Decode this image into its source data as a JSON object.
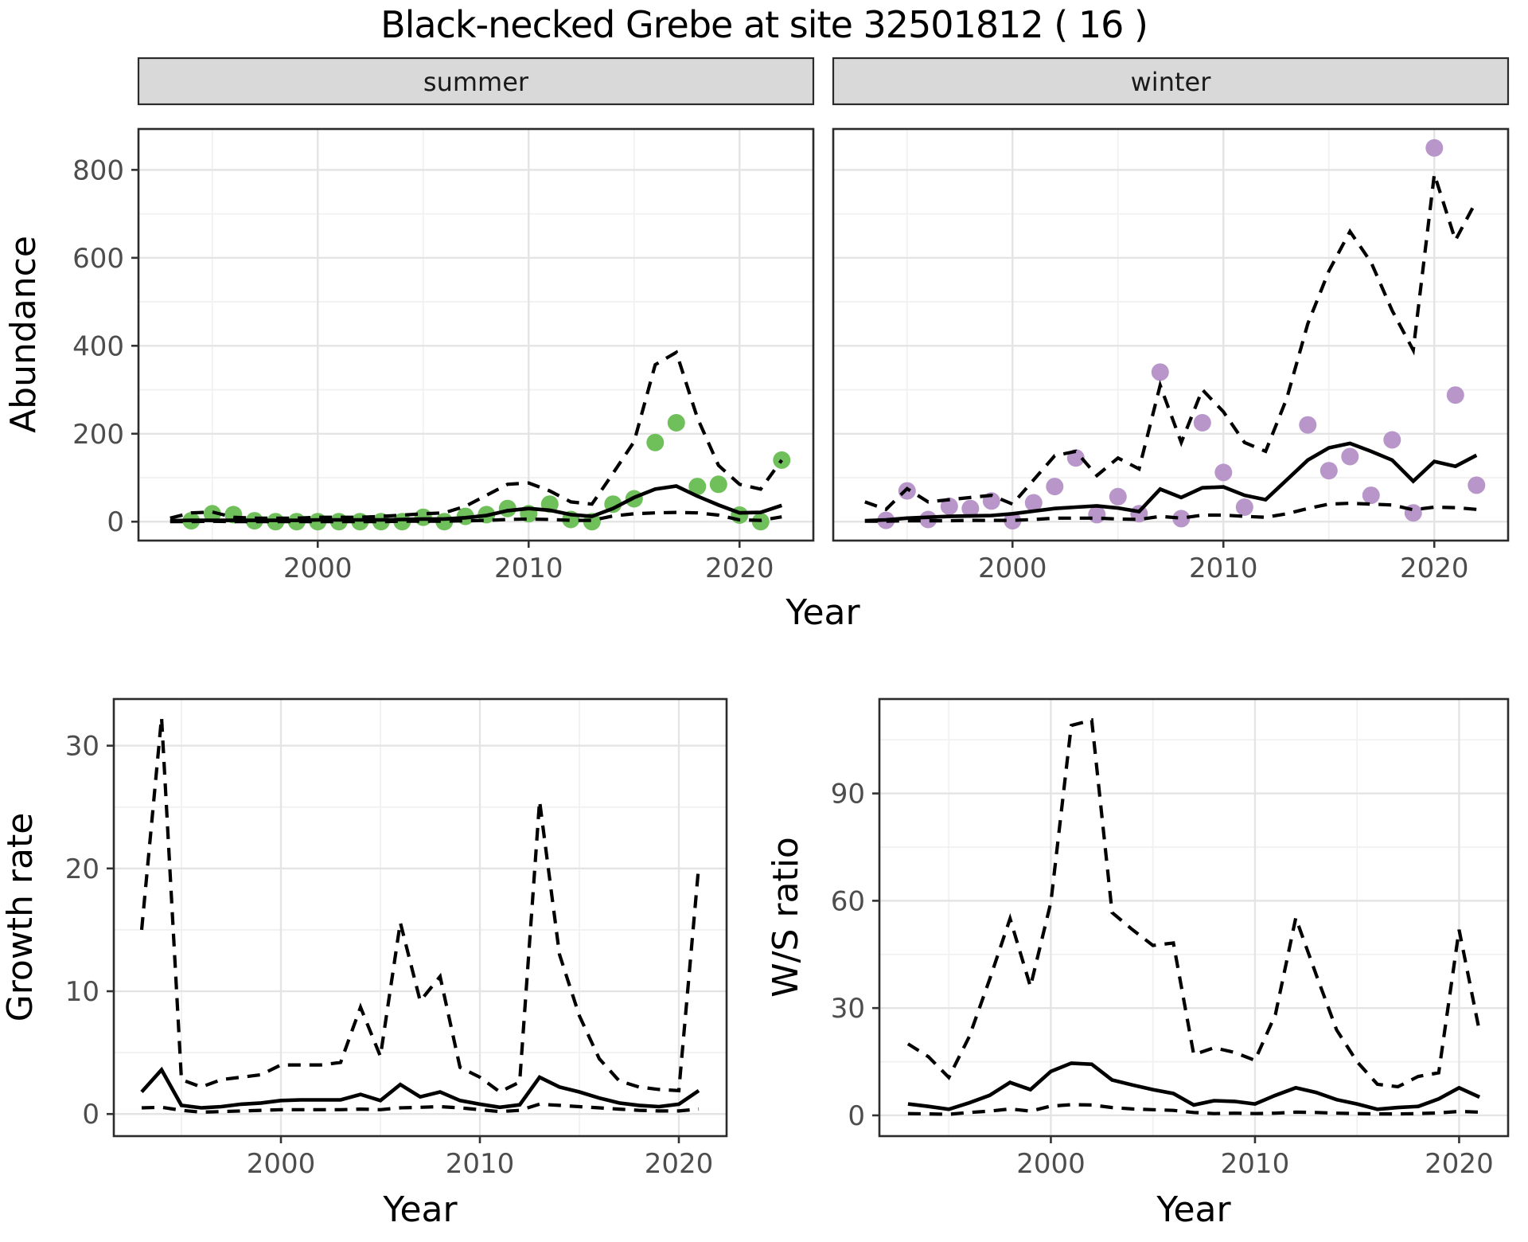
{
  "title": "Black-necked Grebe at site 32501812 ( 16 )",
  "colors": {
    "point_summer": "#6fbf5a",
    "point_winter": "#b896ca",
    "line": "#000000",
    "grid_major": "#e4e4e4",
    "grid_minor": "#f1f1f1",
    "strip_bg": "#d9d9d9",
    "panel_border": "#2b2b2b",
    "tick_text": "#4d4d4d"
  },
  "axes": {
    "x_label_top": "Year",
    "x_label_growth": "Year",
    "x_label_ws": "Year",
    "y_label_abundance": "Abundance",
    "y_label_growth": "Growth rate",
    "y_label_ws": "W/S ratio"
  },
  "chart_data": [
    {
      "id": "abundance-summer",
      "type": "line+scatter",
      "facet_label": "summer",
      "xlabel": "Year",
      "ylabel": "Abundance",
      "xlim": [
        1991.5,
        2023.5
      ],
      "ylim": [
        -43,
        893
      ],
      "xticks": [
        2000,
        2010,
        2020
      ],
      "xminor": [
        1995,
        2005,
        2015
      ],
      "yticks": [
        0,
        200,
        400,
        600,
        800
      ],
      "yminor": [
        100,
        300,
        500,
        700
      ],
      "points": {
        "name": "observed-count",
        "years": [
          1994,
          1995,
          1996,
          1997,
          1998,
          1999,
          2000,
          2001,
          2002,
          2003,
          2004,
          2005,
          2006,
          2007,
          2008,
          2009,
          2010,
          2011,
          2012,
          2013,
          2014,
          2015,
          2016,
          2017,
          2018,
          2019,
          2020,
          2021,
          2022
        ],
        "values": [
          2,
          18,
          16,
          2,
          0,
          0,
          0,
          0,
          0,
          0,
          0,
          10,
          0,
          12,
          16,
          30,
          18,
          40,
          5,
          0,
          40,
          52,
          180,
          225,
          80,
          85,
          15,
          0,
          140
        ]
      },
      "series": [
        {
          "name": "model-estimate",
          "style": "solid",
          "x0": 1993,
          "values": [
            2,
            3,
            3,
            3,
            3,
            3,
            3,
            4,
            4,
            4,
            4,
            5,
            6,
            6,
            9,
            14,
            25,
            30,
            26,
            16,
            12,
            30,
            55,
            74,
            81,
            58,
            38,
            20,
            21,
            37
          ]
        },
        {
          "name": "upper-ci",
          "style": "dashed",
          "x0": 1993,
          "values": [
            8,
            20,
            22,
            10,
            8,
            8,
            8,
            10,
            10,
            10,
            12,
            15,
            18,
            20,
            35,
            60,
            85,
            88,
            70,
            45,
            40,
            110,
            182,
            357,
            385,
            236,
            128,
            85,
            74,
            140
          ]
        },
        {
          "name": "lower-ci",
          "style": "dashed",
          "x0": 1993,
          "values": [
            0,
            0,
            1,
            0,
            0,
            0,
            0,
            0,
            0,
            0,
            0,
            1,
            1,
            1,
            2,
            3,
            5,
            6,
            5,
            3,
            3,
            13,
            18,
            20,
            21,
            20,
            15,
            4,
            3,
            11
          ]
        }
      ]
    },
    {
      "id": "abundance-winter",
      "type": "line+scatter",
      "facet_label": "winter",
      "xlabel": "Year",
      "ylabel": "Abundance",
      "xlim": [
        1991.5,
        2023.5
      ],
      "ylim": [
        -43,
        893
      ],
      "xticks": [
        2000,
        2010,
        2020
      ],
      "xminor": [
        1995,
        2005,
        2015
      ],
      "yticks": [
        0,
        200,
        400,
        600,
        800
      ],
      "yminor": [
        100,
        300,
        500,
        700
      ],
      "points": {
        "name": "observed-count",
        "years": [
          1994,
          1995,
          1996,
          1997,
          1998,
          1999,
          2000,
          2001,
          2002,
          2003,
          2004,
          2005,
          2006,
          2007,
          2008,
          2009,
          2010,
          2011,
          2014,
          2015,
          2016,
          2017,
          2018,
          2019,
          2020,
          2021,
          2022
        ],
        "values": [
          3,
          70,
          5,
          35,
          30,
          47,
          2,
          43,
          80,
          145,
          16,
          57,
          18,
          340,
          7,
          225,
          112,
          33,
          220,
          116,
          148,
          60,
          186,
          20,
          850,
          288,
          83
        ]
      },
      "series": [
        {
          "name": "model-estimate",
          "style": "solid",
          "x0": 1993,
          "values": [
            2,
            4,
            8,
            10,
            12,
            13,
            14,
            18,
            24,
            30,
            33,
            36,
            31,
            23,
            74,
            55,
            77,
            79,
            60,
            50,
            95,
            140,
            168,
            178,
            160,
            140,
            92,
            137,
            126,
            151
          ]
        },
        {
          "name": "upper-ci",
          "style": "dashed",
          "x0": 1993,
          "values": [
            45,
            28,
            75,
            45,
            50,
            55,
            60,
            40,
            95,
            150,
            160,
            105,
            145,
            120,
            310,
            180,
            300,
            250,
            180,
            160,
            280,
            450,
            570,
            660,
            590,
            480,
            390,
            790,
            640,
            730
          ]
        },
        {
          "name": "lower-ci",
          "style": "dashed",
          "x0": 1993,
          "values": [
            1,
            1,
            2,
            2,
            2,
            3,
            3,
            3,
            5,
            8,
            8,
            8,
            6,
            5,
            12,
            8,
            15,
            15,
            12,
            10,
            18,
            30,
            40,
            42,
            40,
            38,
            27,
            33,
            32,
            28
          ]
        }
      ]
    },
    {
      "id": "growth-rate",
      "type": "line",
      "facet_label": null,
      "xlabel": "Year",
      "ylabel": "Growth rate",
      "xlim": [
        1991.6,
        2022.4
      ],
      "ylim": [
        -1.8,
        33.8
      ],
      "xticks": [
        2000,
        2010,
        2020
      ],
      "xminor": [
        1995,
        2005,
        2015
      ],
      "yticks": [
        0,
        10,
        20,
        30
      ],
      "yminor": [
        5,
        15,
        25
      ],
      "points": null,
      "series": [
        {
          "name": "model-estimate",
          "style": "solid",
          "x0": 1993,
          "values": [
            1.8,
            3.6,
            0.7,
            0.5,
            0.6,
            0.8,
            0.9,
            1.1,
            1.15,
            1.15,
            1.15,
            1.6,
            1.1,
            2.4,
            1.4,
            1.8,
            1.1,
            0.8,
            0.55,
            0.75,
            3.0,
            2.2,
            1.8,
            1.3,
            0.9,
            0.7,
            0.6,
            0.8,
            1.9
          ]
        },
        {
          "name": "upper-ci",
          "style": "dashed",
          "x0": 1993,
          "values": [
            15,
            32.3,
            2.8,
            2.2,
            2.8,
            3.0,
            3.2,
            4.0,
            4.0,
            4.0,
            4.2,
            8.7,
            4.7,
            15.6,
            9.2,
            11.2,
            3.8,
            3.0,
            1.8,
            2.6,
            25.5,
            13.0,
            8.0,
            4.5,
            2.7,
            2.2,
            2.0,
            1.9,
            20.2
          ]
        },
        {
          "name": "lower-ci",
          "style": "dashed",
          "x0": 1993,
          "values": [
            0.5,
            0.55,
            0.3,
            0.15,
            0.2,
            0.25,
            0.3,
            0.35,
            0.35,
            0.35,
            0.35,
            0.4,
            0.35,
            0.5,
            0.55,
            0.6,
            0.5,
            0.35,
            0.2,
            0.3,
            0.8,
            0.7,
            0.6,
            0.5,
            0.4,
            0.3,
            0.25,
            0.25,
            0.4
          ]
        }
      ]
    },
    {
      "id": "ws-ratio",
      "type": "line",
      "facet_label": null,
      "xlabel": "Year",
      "ylabel": "W/S ratio",
      "xlim": [
        1991.6,
        2022.4
      ],
      "ylim": [
        -5.8,
        116.4
      ],
      "xticks": [
        2000,
        2010,
        2020
      ],
      "xminor": [
        1995,
        2005,
        2015
      ],
      "yticks": [
        0,
        30,
        60,
        90
      ],
      "yminor": [
        15,
        45,
        75,
        105
      ],
      "points": null,
      "series": [
        {
          "name": "model-estimate",
          "style": "solid",
          "x0": 1993,
          "values": [
            3.2,
            2.5,
            1.7,
            3.5,
            5.6,
            9.2,
            7.2,
            12.3,
            14.6,
            14.3,
            9.9,
            8.5,
            7.2,
            6.1,
            2.9,
            4.1,
            3.9,
            3.2,
            5.6,
            7.7,
            6.4,
            4.4,
            3.2,
            1.7,
            2.2,
            2.5,
            4.6,
            7.7,
            5.1
          ]
        },
        {
          "name": "upper-ci",
          "style": "dashed",
          "x0": 1993,
          "values": [
            20,
            16.4,
            10.6,
            22,
            38,
            55,
            36,
            59.6,
            109,
            110.5,
            56.7,
            51.9,
            47.5,
            48.2,
            17.0,
            18.9,
            17.6,
            15.4,
            28.2,
            55.2,
            39.3,
            23.9,
            15.0,
            8.7,
            8.0,
            10.9,
            11.9,
            51.9,
            23.4
          ]
        },
        {
          "name": "lower-ci",
          "style": "dashed",
          "x0": 1993,
          "values": [
            0.5,
            0.4,
            0.3,
            0.8,
            1.2,
            1.8,
            1.2,
            2.6,
            3.0,
            2.9,
            2.2,
            1.8,
            1.6,
            1.4,
            0.8,
            0.5,
            0.6,
            0.5,
            0.6,
            0.9,
            0.8,
            0.6,
            0.5,
            0.4,
            0.4,
            0.5,
            0.7,
            1.1,
            0.9
          ]
        }
      ]
    }
  ]
}
